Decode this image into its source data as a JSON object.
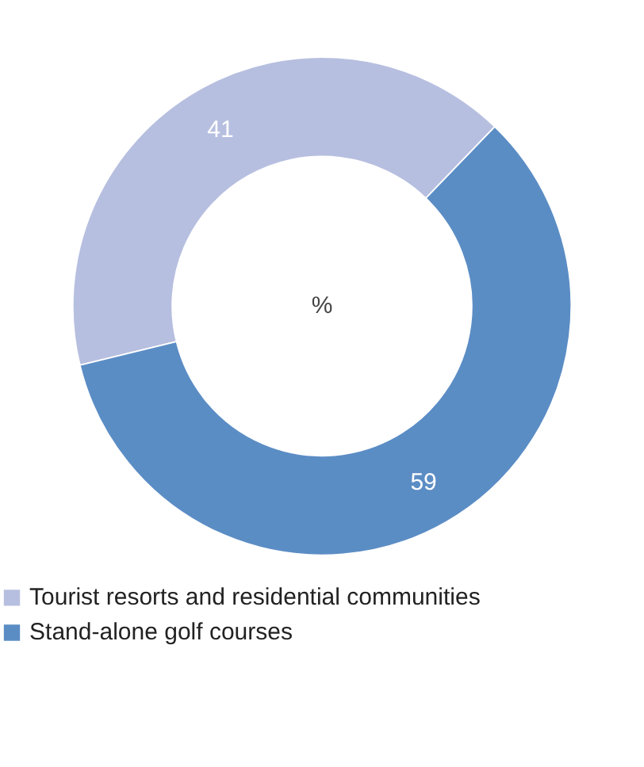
{
  "chart_data": {
    "type": "donut",
    "categories": [
      "Tourist resorts and residential communities",
      "Stand-alone golf courses"
    ],
    "values": [
      41,
      59
    ],
    "colors": [
      "#b7bfe0",
      "#5b8dc5"
    ],
    "data_labels": true,
    "legend": "bottom",
    "annotations": [
      "%"
    ]
  }
}
